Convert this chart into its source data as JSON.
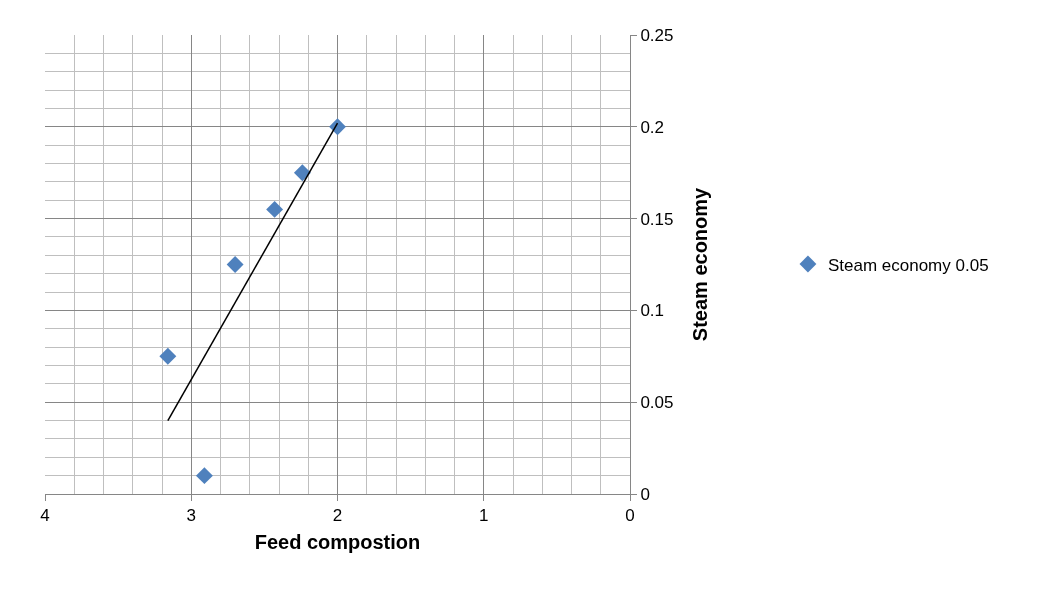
{
  "chart_data": {
    "type": "scatter",
    "xlabel": "Feed compostion",
    "ylabel": "Steam economy",
    "xlim": [
      4,
      0
    ],
    "xticks": [
      4,
      3,
      2,
      1,
      0
    ],
    "ylim": [
      0,
      0.25
    ],
    "yticks": [
      0,
      0.05,
      0.1,
      0.15,
      0.2,
      0.25
    ],
    "grid": true,
    "legend": "right",
    "marker": "diamond",
    "series": [
      {
        "name": "Steam economy 0.05",
        "color": "#4f81bd",
        "x": [
          2.0,
          2.24,
          2.43,
          2.7,
          3.16,
          2.91
        ],
        "values": [
          0.2,
          0.175,
          0.155,
          0.125,
          0.075,
          0.01
        ]
      },
      {
        "type": "line",
        "marker": "none",
        "color": "#000000",
        "x": [
          3.16,
          2.0
        ],
        "values": [
          0.04,
          0.202
        ]
      }
    ]
  }
}
